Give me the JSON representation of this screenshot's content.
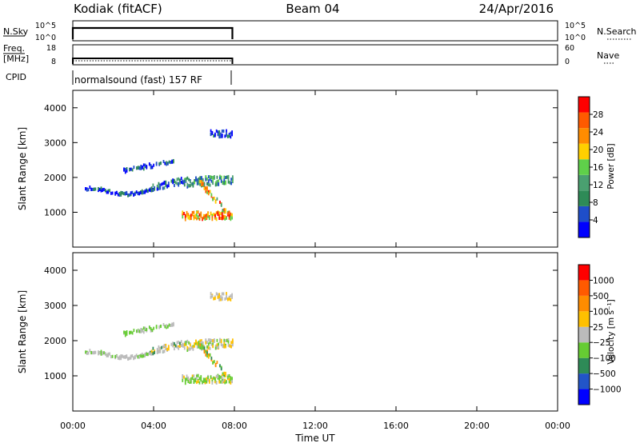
{
  "header": {
    "station": "Kodiak (fitACF)",
    "beam": "Beam 04",
    "date": "24/Apr/2016"
  },
  "panels": {
    "nsky": {
      "left_label": "N.Sky",
      "left_ticks": [
        "10^5",
        "10^0"
      ],
      "right_ticks": [
        "10^5",
        "10^0"
      ],
      "right_label": "N.Search"
    },
    "freq": {
      "left_label_1": "Freq.",
      "left_label_2": "[MHz]",
      "left_ticks": [
        "18",
        "8"
      ],
      "right_ticks": [
        "60",
        "0"
      ],
      "right_label": "Nave"
    },
    "cpid": {
      "label": "CPID",
      "text": "normalsound (fast) 157 RF"
    }
  },
  "colors": {
    "power": [
      "#0000ff",
      "#1f4ec9",
      "#2e8b57",
      "#4aa070",
      "#5fd04a",
      "#ffd000",
      "#ff8c00",
      "#ff5a00",
      "#ff0000"
    ],
    "velocity": [
      "#0000ff",
      "#2255c8",
      "#2e8b57",
      "#66cc33",
      "#bbbbbb",
      "#ffc000",
      "#ff8c00",
      "#ff5a00",
      "#ff0000"
    ]
  },
  "chart_data": [
    {
      "type": "heatmap",
      "name": "power",
      "xlabel": "",
      "ylabel": "Slant Range [km]",
      "ylim": [
        0,
        4500
      ],
      "xlim": [
        0,
        24
      ],
      "yticks": [
        "1000",
        "2000",
        "3000",
        "4000"
      ],
      "colorbar_label": "Power [dB]",
      "colorbar_ticks": [
        "4",
        "8",
        "12",
        "16",
        "20",
        "24",
        "28"
      ],
      "colorbar_range": [
        0,
        32
      ]
    },
    {
      "type": "heatmap",
      "name": "velocity",
      "xlabel": "Time UT",
      "ylabel": "Slant Range [km]",
      "ylim": [
        0,
        4500
      ],
      "xlim": [
        0,
        24
      ],
      "xticks": [
        "00:00",
        "04:00",
        "08:00",
        "12:00",
        "16:00",
        "20:00",
        "00:00"
      ],
      "yticks": [
        "1000",
        "2000",
        "3000",
        "4000"
      ],
      "colorbar_label": "Velocity [m s⁻¹]",
      "colorbar_ticks": [
        "1000",
        "500",
        "100",
        "25",
        "−25",
        "−100",
        "−500",
        "−1000"
      ]
    }
  ]
}
